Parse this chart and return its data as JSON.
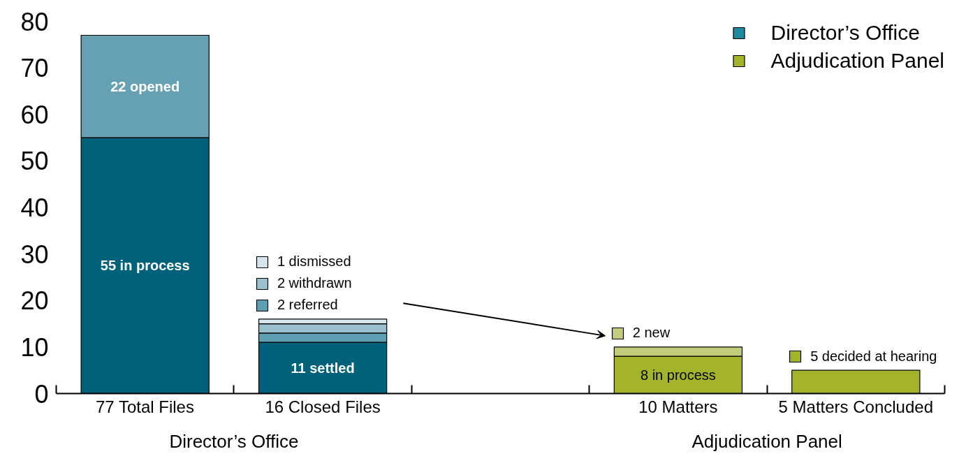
{
  "chart_data": {
    "type": "bar",
    "stacked": true,
    "categories": [
      "77 Total Files",
      "16 Closed Files",
      null,
      "10 Matters",
      "5 Matters Concluded"
    ],
    "series": [
      {
        "colors": [
          "#00627a",
          "#00627a",
          null,
          "#a3b42a",
          null
        ],
        "values": [
          55,
          11,
          null,
          8,
          null
        ],
        "value_labels": [
          "55 in process",
          "11 settled",
          null,
          "8 in process",
          null
        ]
      },
      {
        "color": "#66a1b3",
        "values": [
          22,
          null,
          null,
          null,
          null
        ],
        "value_labels": [
          "22 opened",
          null,
          null,
          null,
          null
        ]
      },
      {
        "name": "2 referred",
        "color": "#5f9fb3",
        "values": [
          null,
          2,
          null,
          null,
          null
        ]
      },
      {
        "name": "2 withdrawn",
        "color": "#9bc0cd",
        "values": [
          null,
          2,
          null,
          null,
          null
        ]
      },
      {
        "name": "1 dismissed",
        "color": "#d5e5eb",
        "values": [
          null,
          1,
          null,
          null,
          null
        ]
      },
      {
        "name": "2 new",
        "color": "#c3cc79",
        "values": [
          null,
          null,
          null,
          2,
          null
        ]
      },
      {
        "name": "5 decided at hearing",
        "color": "#a3b42a",
        "values": [
          null,
          null,
          null,
          null,
          5
        ]
      },
      {
        "name": "Director’s Office",
        "color": "#1f8a9e",
        "values": [
          null,
          null,
          null,
          null,
          null
        ]
      },
      {
        "name": "Adjudication Panel",
        "color": "#a3b42a",
        "values": [
          null,
          null,
          null,
          null,
          null
        ]
      }
    ],
    "ylim": [
      0,
      80
    ],
    "yticks": [
      0,
      10,
      20,
      30,
      40,
      50,
      60,
      70,
      80
    ],
    "annotations": [
      "Director’s Office",
      "Adjudication Panel"
    ],
    "legend": "top right",
    "grid": false
  }
}
